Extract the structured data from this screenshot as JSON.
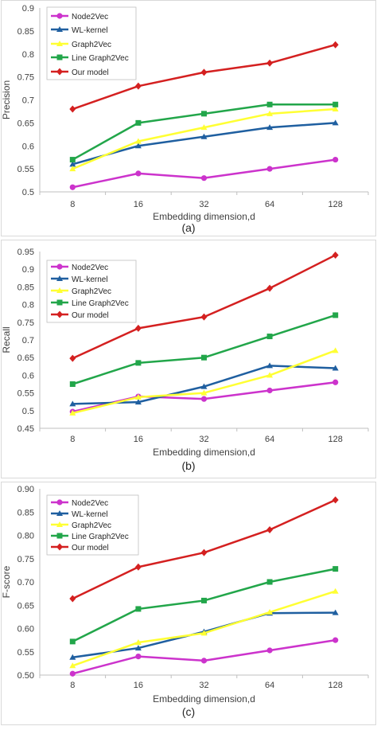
{
  "chart_data": [
    {
      "type": "line",
      "panel_label": "(a)",
      "xlabel": "Embedding dimension,d",
      "ylabel": "Precision",
      "categories": [
        "8",
        "16",
        "32",
        "64",
        "128"
      ],
      "y_ticks": [
        "0.5",
        "0.55",
        "0.6",
        "0.65",
        "0.7",
        "0.75",
        "0.8",
        "0.85",
        "0.9"
      ],
      "ylim": [
        0.5,
        0.9
      ],
      "grid": false,
      "legend_position": "top-left",
      "series": [
        {
          "name": "Node2Vec",
          "color": "#cc33cc",
          "marker": "circle",
          "values": [
            0.51,
            0.54,
            0.53,
            0.55,
            0.57
          ]
        },
        {
          "name": "WL-kernel",
          "color": "#1f5fa0",
          "marker": "triangle",
          "values": [
            0.56,
            0.6,
            0.62,
            0.64,
            0.65
          ]
        },
        {
          "name": "Graph2Vec",
          "color": "#ffff33",
          "marker": "triangle",
          "values": [
            0.55,
            0.61,
            0.64,
            0.67,
            0.68
          ]
        },
        {
          "name": "Line Graph2Vec",
          "color": "#22a64a",
          "marker": "square",
          "values": [
            0.57,
            0.65,
            0.67,
            0.69,
            0.69
          ]
        },
        {
          "name": "Our model",
          "color": "#d42020",
          "marker": "diamond",
          "values": [
            0.68,
            0.73,
            0.76,
            0.78,
            0.82
          ]
        }
      ]
    },
    {
      "type": "line",
      "panel_label": "(b)",
      "xlabel": "Embedding dimension,d",
      "ylabel": "Recall",
      "categories": [
        "8",
        "16",
        "32",
        "64",
        "128"
      ],
      "y_ticks": [
        "0.45",
        "0.5",
        "0.55",
        "0.6",
        "0.65",
        "0.7",
        "0.75",
        "0.8",
        "0.85",
        "0.9",
        "0.95"
      ],
      "ylim": [
        0.45,
        0.95
      ],
      "grid": false,
      "legend_position": "top-left",
      "series": [
        {
          "name": "Node2Vec",
          "color": "#cc33cc",
          "marker": "circle",
          "values": [
            0.497,
            0.54,
            0.533,
            0.557,
            0.58
          ]
        },
        {
          "name": "WL-kernel",
          "color": "#1f5fa0",
          "marker": "triangle",
          "values": [
            0.519,
            0.524,
            0.568,
            0.627,
            0.62
          ]
        },
        {
          "name": "Graph2Vec",
          "color": "#ffff33",
          "marker": "triangle",
          "values": [
            0.493,
            0.538,
            0.55,
            0.6,
            0.67
          ]
        },
        {
          "name": "Line Graph2Vec",
          "color": "#22a64a",
          "marker": "square",
          "values": [
            0.575,
            0.635,
            0.65,
            0.71,
            0.77
          ]
        },
        {
          "name": "Our model",
          "color": "#d42020",
          "marker": "diamond",
          "values": [
            0.648,
            0.733,
            0.765,
            0.846,
            0.94
          ]
        }
      ]
    },
    {
      "type": "line",
      "panel_label": "(c)",
      "xlabel": "Embedding dimension,d",
      "ylabel": "F-score",
      "categories": [
        "8",
        "16",
        "32",
        "64",
        "128"
      ],
      "y_ticks": [
        "0.50",
        "0.55",
        "0.60",
        "0.65",
        "0.70",
        "0.75",
        "0.80",
        "0.85",
        "0.90"
      ],
      "ylim": [
        0.5,
        0.9
      ],
      "grid": false,
      "legend_position": "top-left",
      "series": [
        {
          "name": "Node2Vec",
          "color": "#cc33cc",
          "marker": "circle",
          "values": [
            0.503,
            0.54,
            0.531,
            0.553,
            0.575
          ]
        },
        {
          "name": "WL-kernel",
          "color": "#1f5fa0",
          "marker": "triangle",
          "values": [
            0.538,
            0.558,
            0.593,
            0.633,
            0.634
          ]
        },
        {
          "name": "Graph2Vec",
          "color": "#ffff33",
          "marker": "triangle",
          "values": [
            0.52,
            0.57,
            0.59,
            0.635,
            0.68
          ]
        },
        {
          "name": "Line Graph2Vec",
          "color": "#22a64a",
          "marker": "square",
          "values": [
            0.572,
            0.642,
            0.66,
            0.7,
            0.728
          ]
        },
        {
          "name": "Our model",
          "color": "#d42020",
          "marker": "diamond",
          "values": [
            0.664,
            0.732,
            0.763,
            0.812,
            0.876
          ]
        }
      ]
    }
  ]
}
